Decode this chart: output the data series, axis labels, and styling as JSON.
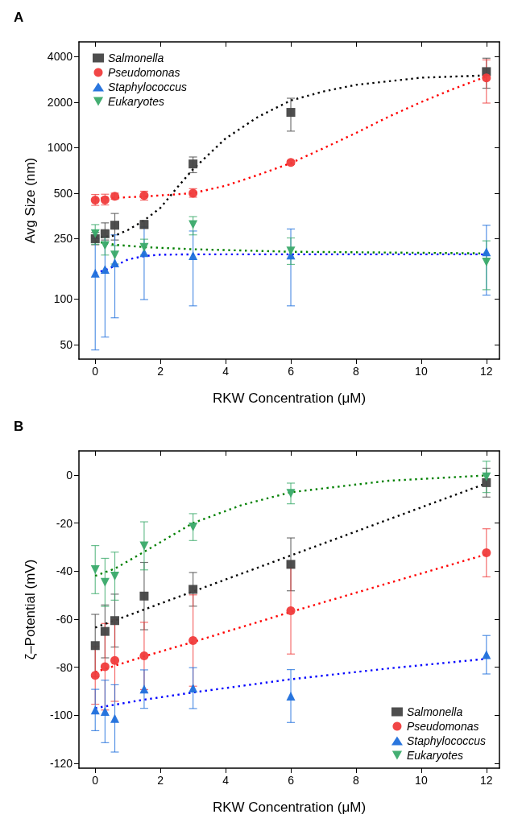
{
  "chart_data": [
    {
      "type": "scatter",
      "title": "A",
      "xlabel": "RKW Concentration (μM)",
      "ylabel": "Avg Size (nm)",
      "log": "y",
      "xlim": [
        -0.5,
        12.4
      ],
      "xticks": [
        0,
        2,
        4,
        6,
        8,
        10,
        12
      ],
      "ylim": [
        40,
        5000
      ],
      "yticks": [
        50,
        100,
        250,
        500,
        1000,
        2000,
        4000
      ],
      "grid": false,
      "legend": "top left",
      "series": [
        {
          "name": "Salmonella",
          "color": "#444444",
          "marker": "square",
          "x": [
            0,
            0.3,
            0.6,
            1.5,
            3,
            6,
            12
          ],
          "values": [
            250,
            270,
            307,
            310,
            780,
            1710,
            3180
          ],
          "errors": [
            [
              228,
              275
            ],
            [
              245,
              318
            ],
            [
              245,
              367
            ],
            [
              295,
              330
            ],
            [
              683,
              867
            ],
            [
              1285,
              2120
            ],
            [
              2470,
              3900
            ]
          ]
        },
        {
          "name": "Pseudomonas",
          "color": "#f03c3c",
          "marker": "circle",
          "x": [
            0,
            0.3,
            0.6,
            1.5,
            3,
            6,
            12
          ],
          "values": [
            450,
            452,
            477,
            483,
            500,
            797,
            2890
          ],
          "errors": [
            [
              415,
              490
            ],
            [
              418,
              492
            ],
            [
              455,
              500
            ],
            [
              450,
              515
            ],
            [
              470,
              535
            ],
            [
              775,
              820
            ],
            [
              1970,
              3800
            ]
          ]
        },
        {
          "name": "Staphylococcus",
          "color": "#1f6fdc",
          "marker": "triangle",
          "x": [
            0,
            0.3,
            0.6,
            1.5,
            3,
            6,
            12
          ],
          "values": [
            148,
            157,
            173,
            202,
            193,
            195,
            205
          ],
          "errors": [
            [
              46,
              250
            ],
            [
              56,
              258
            ],
            [
              75,
              265
            ],
            [
              99,
              300
            ],
            [
              90,
              281
            ],
            [
              90,
              290
            ],
            [
              106,
              307
            ]
          ]
        },
        {
          "name": "Eukaryotes",
          "color": "#3aaa6a",
          "marker": "triangle-down",
          "x": [
            0,
            0.3,
            0.6,
            1.5,
            3,
            6,
            12
          ],
          "values": [
            270,
            225,
            195,
            219,
            310,
            207,
            175
          ],
          "errors": [
            [
              230,
              310
            ],
            [
              195,
              255
            ],
            [
              170,
              225
            ],
            [
              195,
              248
            ],
            [
              265,
              350
            ],
            [
              169,
              253
            ],
            [
              115,
              242
            ]
          ]
        },
        {
          "type": "line",
          "color": "#000000",
          "marker": "none",
          "line_style": "dotted",
          "x": [
            0,
            0.6,
            1,
            1.5,
            2,
            2.5,
            3,
            4,
            5,
            6,
            7,
            8,
            10,
            12
          ],
          "values": [
            255,
            262,
            285,
            330,
            400,
            540,
            720,
            1150,
            1600,
            2050,
            2350,
            2600,
            2900,
            3000
          ]
        },
        {
          "type": "line",
          "color": "#ff0000",
          "marker": "none",
          "line_style": "dotted",
          "x": [
            0,
            1.5,
            3,
            4,
            5,
            6,
            7,
            8,
            9,
            10,
            11,
            12
          ],
          "values": [
            460,
            475,
            500,
            560,
            660,
            790,
            990,
            1250,
            1600,
            2000,
            2450,
            2950
          ]
        },
        {
          "type": "line",
          "color": "#0000ff",
          "marker": "none",
          "line_style": "dotted",
          "x": [
            0,
            0.3,
            0.6,
            1,
            1.5,
            2,
            3,
            6,
            12
          ],
          "values": [
            148,
            155,
            165,
            182,
            192,
            196,
            197,
            197,
            197
          ]
        },
        {
          "type": "line",
          "color": "#008000",
          "marker": "none",
          "line_style": "dotted",
          "x": [
            0,
            0.6,
            1.5,
            3,
            6,
            12
          ],
          "values": [
            240,
            228,
            220,
            213,
            205,
            200
          ]
        }
      ]
    },
    {
      "type": "scatter",
      "title": "B",
      "xlabel": "RKW Concentration (μM)",
      "ylabel": "ζ–Potential (mV)",
      "xlim": [
        -0.5,
        12.4
      ],
      "xticks": [
        0,
        2,
        4,
        6,
        8,
        10,
        12
      ],
      "ylim": [
        -122,
        10
      ],
      "yticks": [
        -120,
        -100,
        -80,
        -60,
        -40,
        -20,
        0
      ],
      "grid": false,
      "legend": "bottom right",
      "series": [
        {
          "name": "Salmonella",
          "color": "#444444",
          "marker": "square",
          "x": [
            0,
            0.3,
            0.6,
            1.5,
            3,
            6,
            12
          ],
          "values": [
            -71,
            -65.1,
            -60.6,
            -50.4,
            -47.6,
            -37.2,
            -3.2
          ],
          "errors": [
            13,
            11,
            11,
            14,
            7,
            11,
            6
          ]
        },
        {
          "name": "Pseudomonas",
          "color": "#f03c3c",
          "marker": "circle",
          "x": [
            0,
            0.3,
            0.6,
            1.5,
            3,
            6,
            12
          ],
          "values": [
            -83.4,
            -79.8,
            -77.2,
            -75.3,
            -68.9,
            -56.5,
            -32.4
          ],
          "errors": [
            12,
            18,
            17,
            14,
            19,
            18,
            10
          ]
        },
        {
          "name": "Staphylococcus",
          "color": "#1f6fdc",
          "marker": "triangle",
          "x": [
            0,
            0.3,
            0.6,
            1.5,
            3,
            6,
            12
          ],
          "values": [
            -97.8,
            -98.4,
            -101.3,
            -89.1,
            -88.7,
            -92,
            -74.8
          ],
          "errors": [
            8.6,
            13,
            14,
            8,
            8.5,
            11,
            8
          ]
        },
        {
          "name": "Eukaryotes",
          "color": "#3aaa6a",
          "marker": "triangle-down",
          "x": [
            0,
            0.3,
            0.6,
            1.5,
            3,
            6,
            12
          ],
          "values": [
            -39.4,
            -44.7,
            -42.1,
            -29.5,
            -21.7,
            -7.7,
            -0.8
          ],
          "errors": [
            10,
            10,
            10,
            10,
            5.6,
            4.3,
            6.5
          ]
        },
        {
          "type": "line",
          "color": "#000000",
          "marker": "none",
          "line_style": "dotted",
          "x": [
            0,
            3,
            6,
            9,
            12
          ],
          "values": [
            -63.5,
            -48.5,
            -33.5,
            -18.5,
            -3.5
          ]
        },
        {
          "type": "line",
          "color": "#ff0000",
          "marker": "none",
          "line_style": "dotted",
          "x": [
            0,
            1.5,
            3,
            6,
            9,
            12
          ],
          "values": [
            -82,
            -75.5,
            -69.5,
            -57,
            -45,
            -33
          ]
        },
        {
          "type": "line",
          "color": "#0000ff",
          "marker": "none",
          "line_style": "dotted",
          "x": [
            0,
            1.5,
            3,
            6,
            9,
            12
          ],
          "values": [
            -97,
            -93.5,
            -90.5,
            -85,
            -80.5,
            -76.5
          ]
        },
        {
          "type": "line",
          "color": "#008000",
          "marker": "none",
          "line_style": "dotted",
          "x": [
            0,
            0.6,
            1.5,
            3,
            4.5,
            6,
            9,
            12
          ],
          "values": [
            -42,
            -39,
            -32,
            -20,
            -12.5,
            -7.2,
            -2.4,
            -0.2
          ]
        }
      ]
    }
  ]
}
